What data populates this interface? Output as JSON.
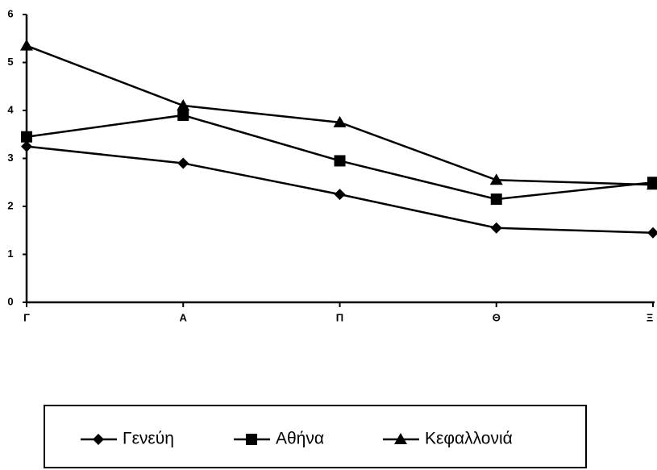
{
  "chart_data": {
    "type": "line",
    "categories": [
      "Γ",
      "Α",
      "Π",
      "Θ",
      "Ξ"
    ],
    "series": [
      {
        "name": "Γενεύη",
        "color": "#000000",
        "marker": "diamond",
        "values": [
          3.25,
          2.9,
          2.25,
          1.55,
          1.45
        ]
      },
      {
        "name": "Αθήνα",
        "color": "#000000",
        "marker": "square",
        "values": [
          3.45,
          3.9,
          2.95,
          2.15,
          2.5
        ]
      },
      {
        "name": "Κεφαλλονιά",
        "color": "#000000",
        "marker": "triangle",
        "values": [
          5.35,
          4.1,
          3.75,
          2.55,
          2.45
        ]
      }
    ],
    "ylim": [
      0,
      6
    ],
    "yticks": [
      0,
      1,
      2,
      3,
      4,
      5,
      6
    ],
    "grid": false,
    "legend": "bottom"
  }
}
